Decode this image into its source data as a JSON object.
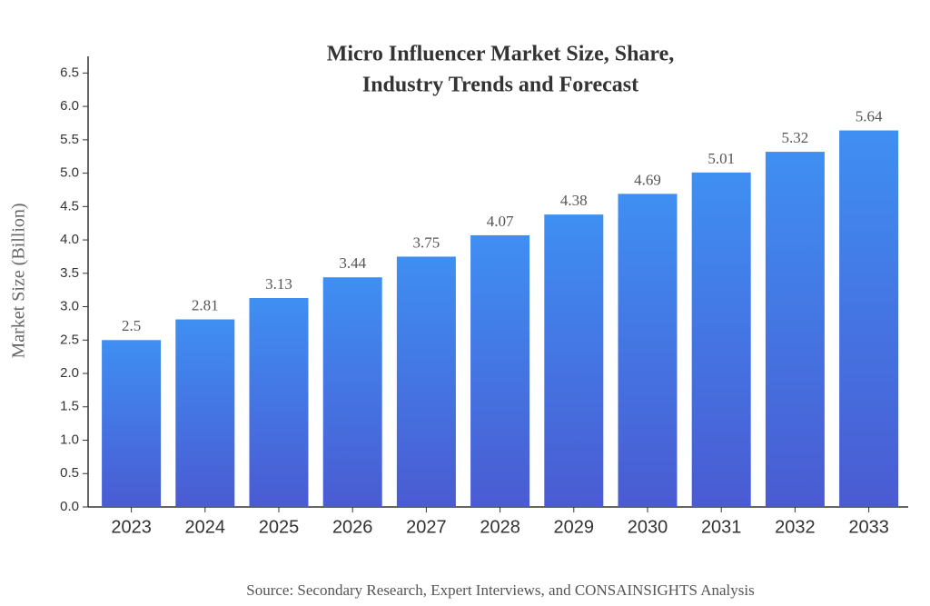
{
  "chart_data": {
    "type": "bar",
    "title": [
      "Micro Influencer Market Size, Share,",
      "Industry Trends and Forecast"
    ],
    "y_label": "Market Size (Billion)",
    "source": "Source: Secondary Research, Expert Interviews, and CONSAINSIGHTS Analysis",
    "categories": [
      "2023",
      "2024",
      "2025",
      "2026",
      "2027",
      "2028",
      "2029",
      "2030",
      "2031",
      "2032",
      "2033"
    ],
    "values": [
      2.5,
      2.81,
      3.13,
      3.44,
      3.75,
      4.07,
      4.38,
      4.69,
      5.01,
      5.32,
      5.64
    ],
    "gradient": [
      "#3f8ff2",
      "#4a5bd2"
    ],
    "ylim": [
      0,
      6.75
    ],
    "yticks": [
      {
        "value": 0,
        "label": "0.0"
      },
      0.5,
      {
        "value": 1,
        "label": "1.0"
      },
      1.5,
      {
        "value": 2,
        "label": "2.0"
      },
      2.5,
      {
        "value": 3,
        "label": "3.0"
      },
      3.5,
      {
        "value": 4,
        "label": "4.0"
      },
      4.5,
      {
        "value": 5,
        "label": "5.0"
      },
      5.5,
      {
        "value": 6,
        "label": "6.0"
      },
      6.5
    ],
    "grid": false
  }
}
